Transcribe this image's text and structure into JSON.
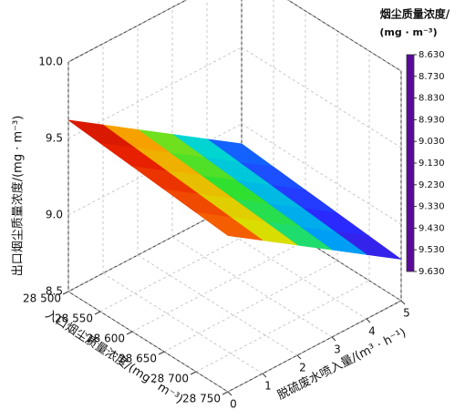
{
  "chart_data": {
    "type": "surface3d",
    "x_label": "入口烟尘质量浓度/(mg · m⁻³)",
    "y_label": "脱硫废水喷入量/(m³ · h⁻¹)",
    "z_label": "出口烟尘质量浓度/(mg · m⁻³)",
    "colorbar_title": [
      "烟尘质量浓度/",
      "(mg · m⁻³)"
    ],
    "x": [
      28500,
      28550,
      28600,
      28650,
      28700,
      28750
    ],
    "y": [
      0,
      1,
      2,
      3,
      4,
      5
    ],
    "z": [
      [
        9.62,
        9.47,
        9.32,
        9.17,
        9.02,
        8.87
      ],
      [
        9.6,
        9.45,
        9.3,
        9.15,
        9.0,
        8.85
      ],
      [
        9.58,
        9.43,
        9.28,
        9.13,
        8.98,
        8.83
      ],
      [
        9.56,
        9.41,
        9.26,
        9.11,
        8.96,
        8.81
      ],
      [
        9.54,
        9.39,
        9.24,
        9.09,
        8.94,
        8.79
      ],
      [
        9.52,
        9.37,
        9.22,
        9.07,
        8.92,
        8.77
      ]
    ],
    "xlim": [
      28500,
      28750
    ],
    "xticks": [
      {
        "value": 28500,
        "label": "28 500"
      },
      {
        "value": 28550,
        "label": "28 550"
      },
      {
        "value": 28600,
        "label": "28 600"
      },
      {
        "value": 28650,
        "label": "28 650"
      },
      {
        "value": 28700,
        "label": "28 700"
      },
      {
        "value": 28750,
        "label": "28 750"
      }
    ],
    "ylim": [
      0,
      5
    ],
    "yticks": [
      0,
      1,
      2,
      3,
      4,
      5
    ],
    "zlim": [
      8.5,
      10
    ],
    "zticks": [
      8.5,
      {
        "value": 9,
        "label": "9.0"
      },
      9.5,
      {
        "value": 10,
        "label": "10.0"
      }
    ],
    "clim": [
      8.63,
      9.63
    ],
    "cticks": [
      {
        "value": 8.63,
        "label": "8.630"
      },
      {
        "value": 8.73,
        "label": "8.730"
      },
      {
        "value": 8.83,
        "label": "8.830"
      },
      {
        "value": 8.93,
        "label": "8.930"
      },
      {
        "value": 9.03,
        "label": "9.030"
      },
      {
        "value": 9.13,
        "label": "9.130"
      },
      {
        "value": 9.23,
        "label": "9.230"
      },
      {
        "value": 9.33,
        "label": "9.330"
      },
      {
        "value": 9.43,
        "label": "9.430"
      },
      {
        "value": 9.53,
        "label": "9.530"
      },
      {
        "value": 9.63,
        "label": "9.630"
      }
    ],
    "colormap": [
      "#5a0a9a",
      "#2a2aff",
      "#0090ff",
      "#00d8d0",
      "#30e030",
      "#d8e000",
      "#ff9000",
      "#e82000",
      "#a00000"
    ],
    "grid": true
  }
}
